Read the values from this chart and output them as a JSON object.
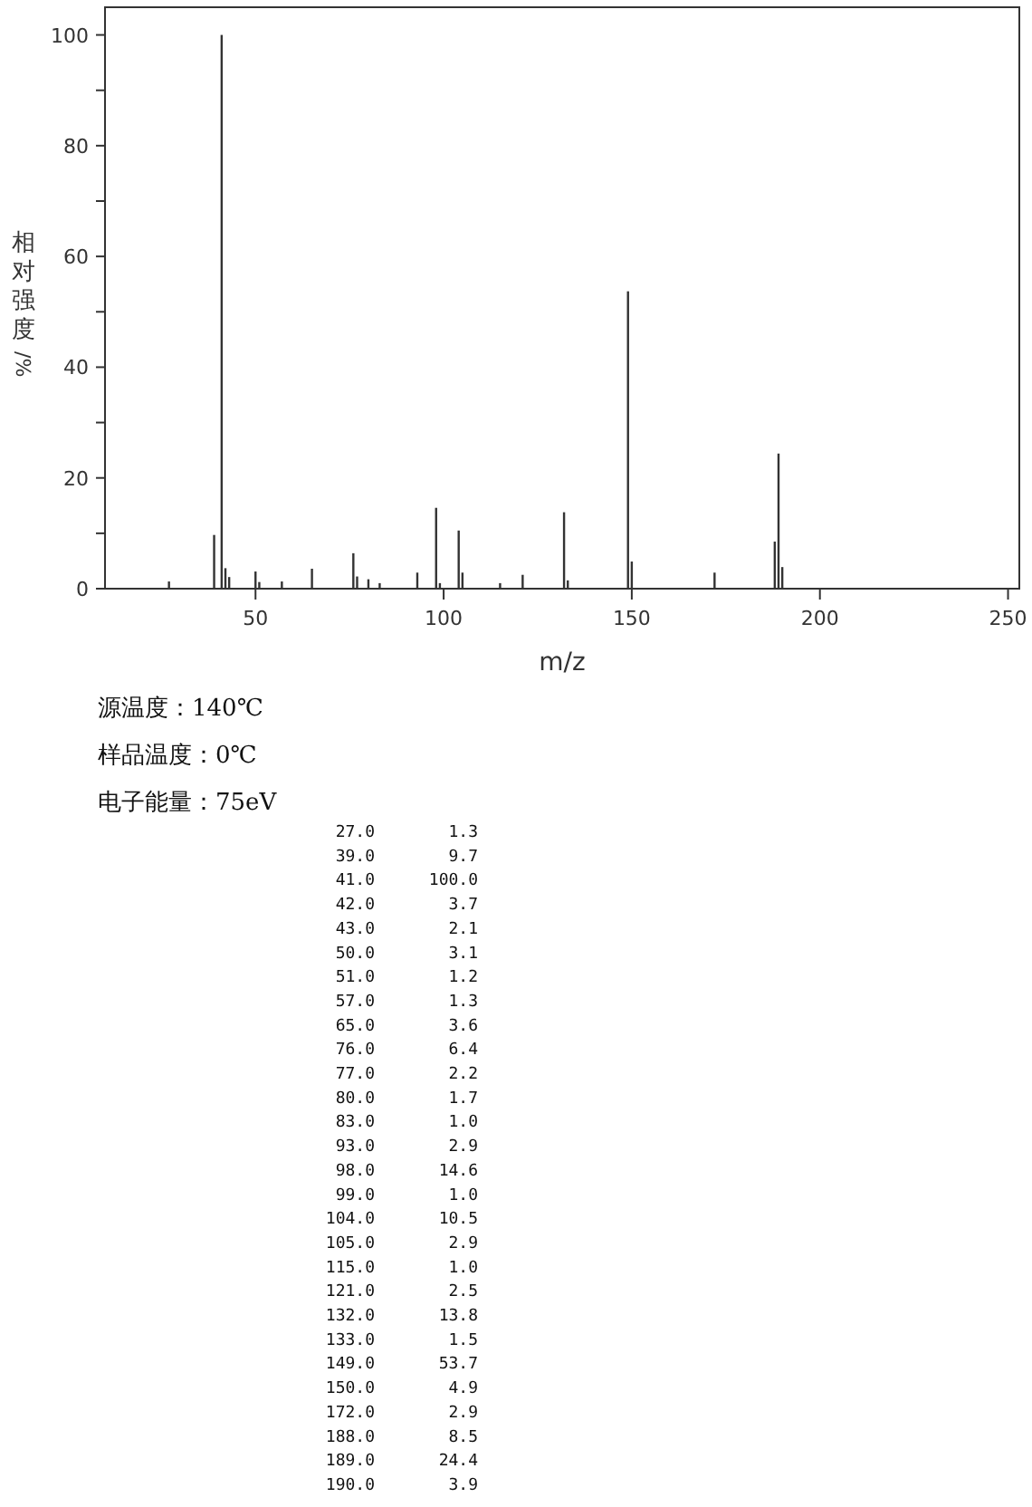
{
  "chart_data": {
    "type": "bar",
    "xlabel": "m/z",
    "ylabel": "相对强度/%",
    "x": [
      27,
      39,
      41,
      42,
      43,
      50,
      51,
      57,
      65,
      76,
      77,
      80,
      83,
      93,
      98,
      99,
      104,
      105,
      115,
      121,
      132,
      133,
      149,
      150,
      172,
      188,
      189,
      190
    ],
    "values": [
      1.3,
      9.7,
      100.0,
      3.7,
      2.1,
      3.1,
      1.2,
      1.3,
      3.6,
      6.4,
      2.2,
      1.7,
      1.0,
      2.9,
      14.6,
      1.0,
      10.5,
      2.9,
      1.0,
      2.5,
      13.8,
      1.5,
      53.7,
      4.9,
      2.9,
      8.5,
      24.4,
      3.9
    ],
    "color": "#333333",
    "xlim": [
      10,
      253
    ],
    "xticks": [
      50,
      100,
      150,
      200,
      250
    ],
    "ylim": [
      0,
      105
    ],
    "yticks": [
      0,
      {
        "value": 10,
        "label": null
      },
      20,
      {
        "value": 30,
        "label": null
      },
      40,
      {
        "value": 50,
        "label": null
      },
      60,
      {
        "value": 70,
        "label": null
      },
      80,
      {
        "value": 90,
        "label": null
      },
      100
    ],
    "grid": false,
    "annotations": [
      "源温度：140℃",
      "样品温度：0℃",
      "电子能量：75eV",
      "27.0",
      "1.3",
      "39.0",
      "9.7",
      "41.0",
      "100.0",
      "42.0",
      "3.7",
      "43.0",
      "2.1",
      "50.0",
      "3.1",
      "51.0",
      "1.2",
      "57.0",
      "1.3",
      "65.0",
      "3.6",
      "76.0",
      "6.4",
      "77.0",
      "2.2",
      "80.0",
      "1.7",
      "83.0",
      "1.0",
      "93.0",
      "2.9",
      "98.0",
      "14.6",
      "99.0",
      "1.0",
      "104.0",
      "10.5",
      "105.0",
      "2.9",
      "115.0",
      "1.0",
      "121.0",
      "2.5",
      "132.0",
      "13.8",
      "133.0",
      "1.5",
      "149.0",
      "53.7",
      "150.0",
      "4.9",
      "172.0",
      "2.9",
      "188.0",
      "8.5",
      "189.0",
      "24.4",
      "190.0",
      "3.9"
    ]
  }
}
